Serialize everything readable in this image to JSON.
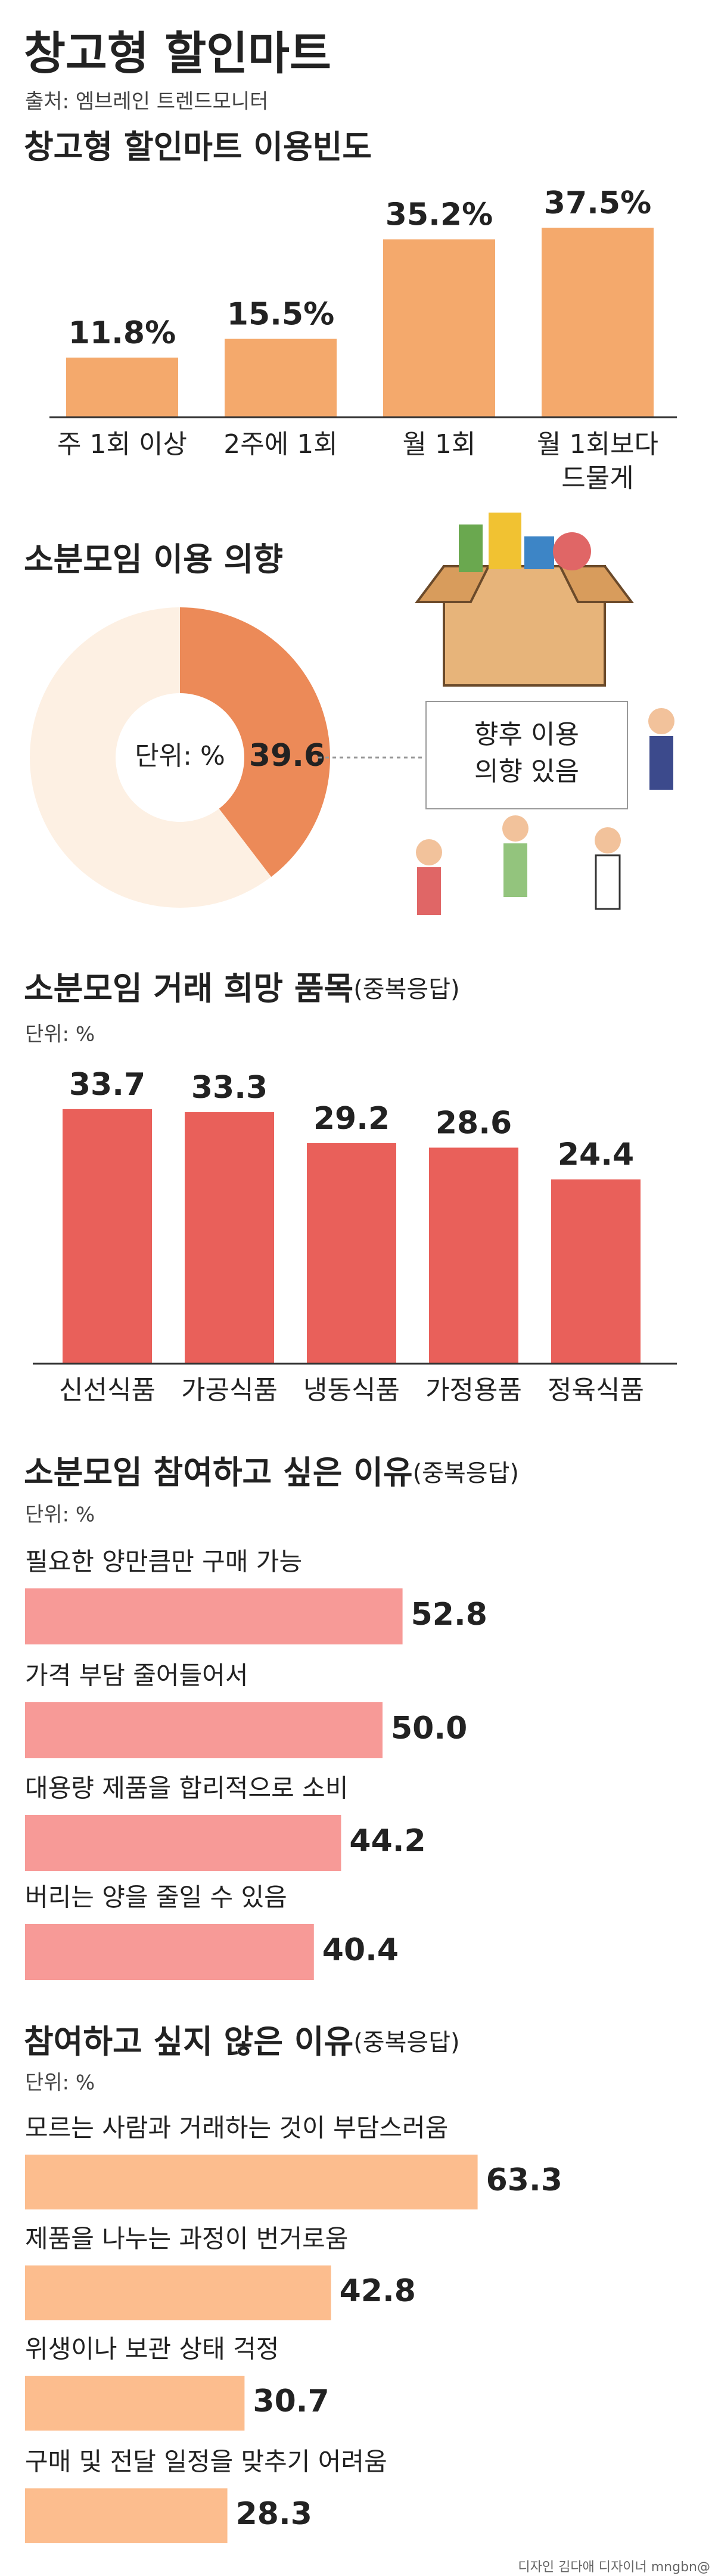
{
  "header": {
    "title": "창고형 할인마트",
    "source": "출처: 엠브레인 트렌드모니터"
  },
  "chart_data": [
    {
      "type": "bar",
      "title": "창고형 할인마트 이용빈도",
      "categories": [
        "주 1회 이상",
        "2주에 1회",
        "월 1회",
        "월 1회보다\n드물게"
      ],
      "values": [
        11.8,
        15.5,
        35.2,
        37.5
      ],
      "value_labels": [
        "11.8%",
        "15.5%",
        "35.2%",
        "37.5%"
      ],
      "color": "#f4a96c",
      "ylim": [
        0,
        50
      ]
    },
    {
      "type": "pie",
      "title": "소분모임 이용 의향",
      "unit": "단위: %",
      "values": [
        39.6
      ],
      "color": "#ec8a58",
      "rest_color": "#fdf0e3",
      "annotation": [
        "향후 이용",
        "의향 있음"
      ]
    },
    {
      "type": "bar",
      "title": "소분모임 거래 희망 품목",
      "title_note": "(중복응답)",
      "unit": "단위: %",
      "categories": [
        "신선식품",
        "가공식품",
        "냉동식품",
        "가정용품",
        "정육식품"
      ],
      "values": [
        33.7,
        33.3,
        29.2,
        28.6,
        24.4
      ],
      "color": "#e9605a",
      "ylim": [
        0,
        40
      ]
    },
    {
      "type": "barh",
      "title": "소분모임 참여하고 싶은 이유",
      "title_note": "(중복응답)",
      "unit": "단위: %",
      "categories": [
        "필요한 양만큼만 구매 가능",
        "가격 부담 줄어들어서",
        "대용량 제품을 합리적으로 소비",
        "버리는 양을 줄일 수 있음"
      ],
      "values": [
        52.8,
        50.0,
        44.2,
        40.4
      ],
      "value_labels": [
        "52.8",
        "50.0",
        "44.2",
        "40.4"
      ],
      "color": "#f79a97",
      "xlim": [
        0,
        90
      ]
    },
    {
      "type": "barh",
      "title": "참여하고 싶지 않은 이유",
      "title_note": "(중복응답)",
      "unit": "단위: %",
      "categories": [
        "모르는 사람과 거래하는 것이 부담스러움",
        "제품을 나누는 과정이 번거로움",
        "위생이나 보관 상태 걱정",
        "구매 및 전달 일정을 맞추기 어려움"
      ],
      "values": [
        63.3,
        42.8,
        30.7,
        28.3
      ],
      "color": "#fcbd8e",
      "xlim": [
        0,
        90
      ]
    }
  ],
  "footer": {
    "credit": "디자인 김다애 디자이너 mngbn@"
  }
}
